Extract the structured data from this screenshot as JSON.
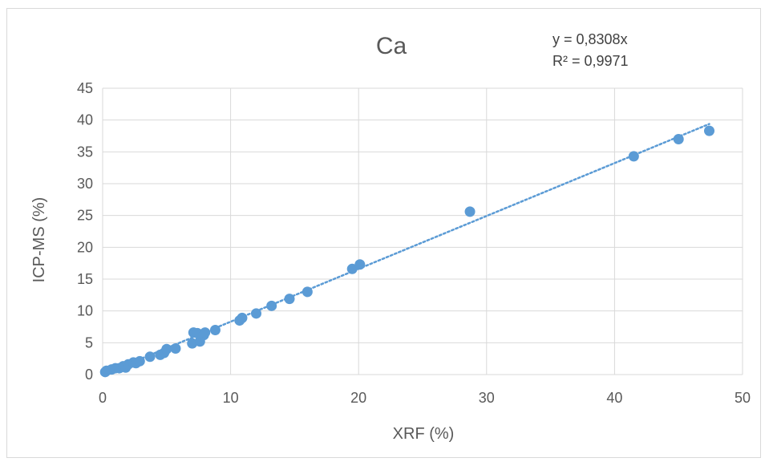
{
  "chart_data": {
    "type": "scatter",
    "title": "Ca",
    "xlabel": "XRF (%)",
    "ylabel": "ICP-MS (%)",
    "xlim": [
      0,
      50
    ],
    "ylim": [
      0,
      45
    ],
    "x_ticks": [
      "0",
      "10",
      "20",
      "30",
      "40",
      "50"
    ],
    "y_ticks": [
      "0",
      "5",
      "10",
      "15",
      "20",
      "25",
      "30",
      "35",
      "40",
      "45"
    ],
    "grid": true,
    "legend": "none",
    "marker_color": "#5b9bd5",
    "trendline": {
      "type": "linear",
      "slope": 0.8308,
      "intercept": 0,
      "style": "dotted",
      "color": "#5b9bd5",
      "equation": "y = 0,8308x",
      "r_squared": "R² = 0,9971"
    },
    "points": [
      {
        "x": 0.2,
        "y": 0.4
      },
      {
        "x": 0.3,
        "y": 0.6
      },
      {
        "x": 0.7,
        "y": 0.8
      },
      {
        "x": 1.0,
        "y": 1.0
      },
      {
        "x": 1.3,
        "y": 1.0
      },
      {
        "x": 1.6,
        "y": 1.3
      },
      {
        "x": 1.8,
        "y": 1.1
      },
      {
        "x": 2.0,
        "y": 1.6
      },
      {
        "x": 2.4,
        "y": 1.9
      },
      {
        "x": 2.6,
        "y": 1.8
      },
      {
        "x": 2.9,
        "y": 2.1
      },
      {
        "x": 3.7,
        "y": 2.8
      },
      {
        "x": 4.5,
        "y": 3.1
      },
      {
        "x": 4.8,
        "y": 3.4
      },
      {
        "x": 5.0,
        "y": 4.0
      },
      {
        "x": 5.7,
        "y": 4.1
      },
      {
        "x": 7.0,
        "y": 4.9
      },
      {
        "x": 7.1,
        "y": 6.6
      },
      {
        "x": 7.4,
        "y": 6.5
      },
      {
        "x": 7.6,
        "y": 5.2
      },
      {
        "x": 7.9,
        "y": 6.2
      },
      {
        "x": 8.0,
        "y": 6.6
      },
      {
        "x": 8.8,
        "y": 7.0
      },
      {
        "x": 10.7,
        "y": 8.5
      },
      {
        "x": 10.9,
        "y": 8.9
      },
      {
        "x": 12.0,
        "y": 9.6
      },
      {
        "x": 13.2,
        "y": 10.8
      },
      {
        "x": 14.6,
        "y": 11.9
      },
      {
        "x": 16.0,
        "y": 13.0
      },
      {
        "x": 19.5,
        "y": 16.6
      },
      {
        "x": 20.1,
        "y": 17.3
      },
      {
        "x": 28.7,
        "y": 25.6
      },
      {
        "x": 41.5,
        "y": 34.3
      },
      {
        "x": 45.0,
        "y": 37.0
      },
      {
        "x": 47.4,
        "y": 38.3
      }
    ]
  }
}
